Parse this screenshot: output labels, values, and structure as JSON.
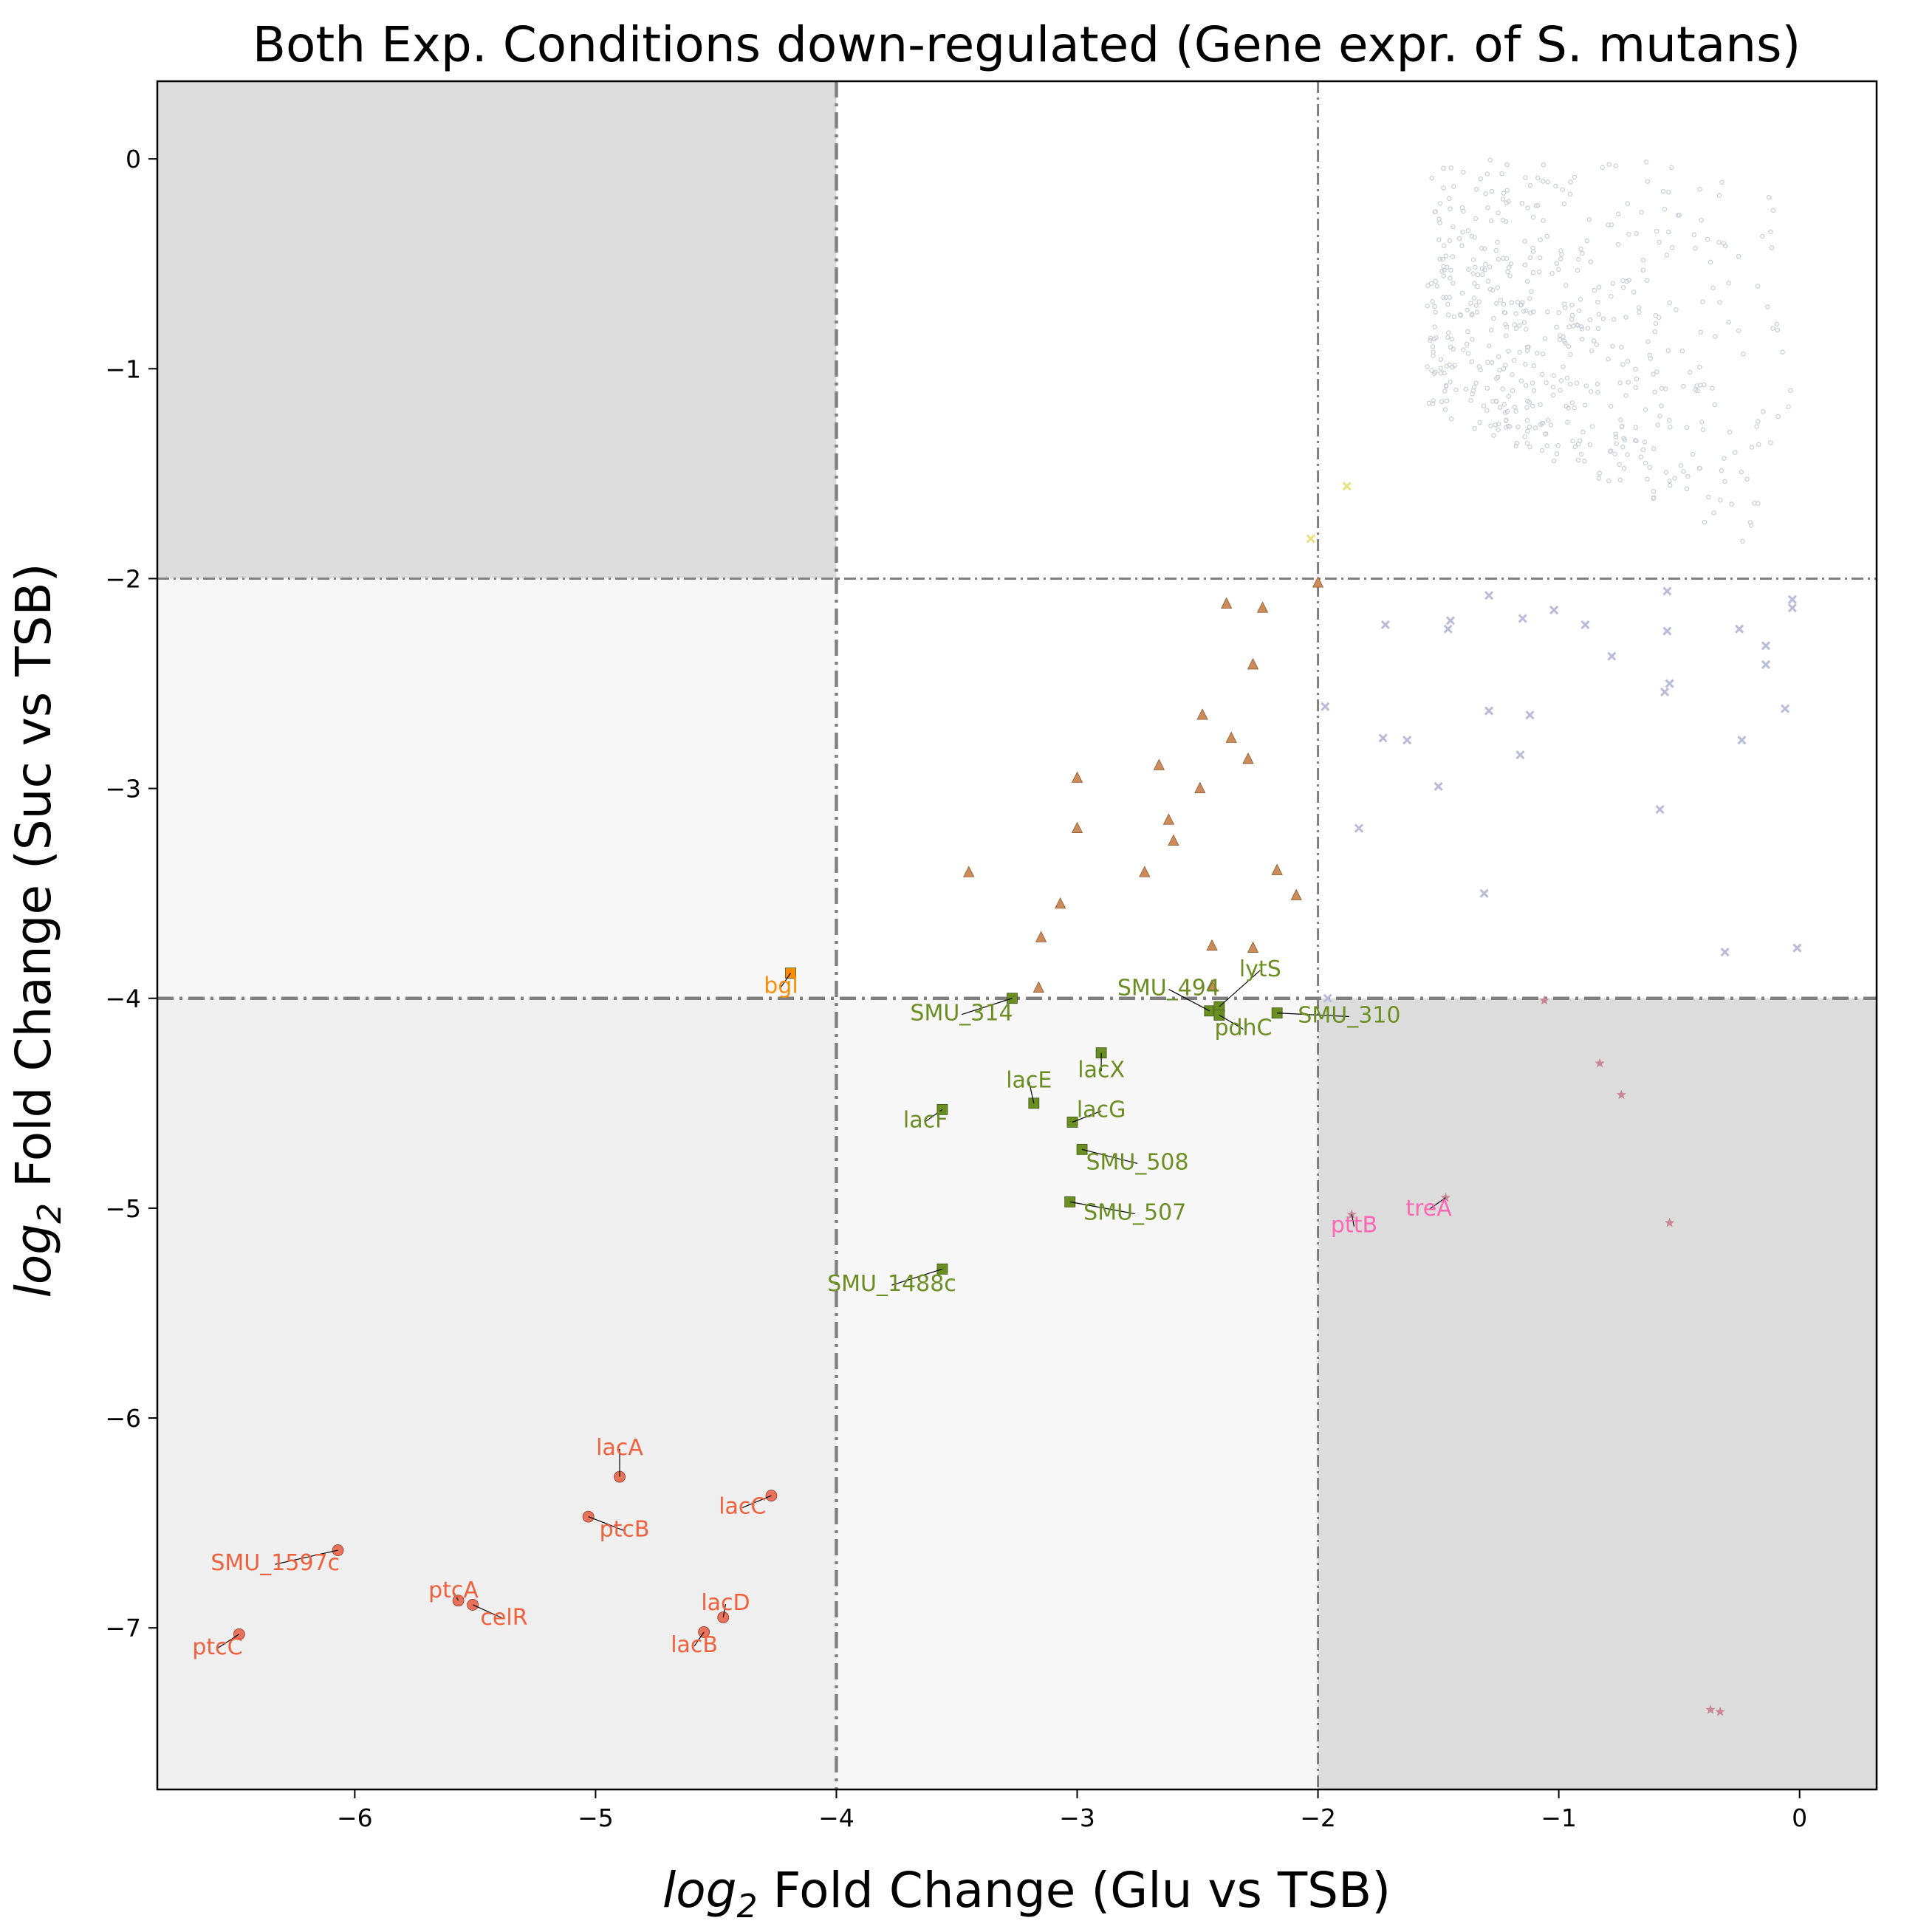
{
  "chart_data": {
    "type": "scatter",
    "title": "Both Exp. Conditions down-regulated (Gene expr. of S. mutans)",
    "xlabel": {
      "prefix": "log",
      "sub": "2",
      "rest": " Fold Change (Glu vs TSB)"
    },
    "ylabel": {
      "prefix": "log",
      "sub": "2",
      "rest": " Fold Change (Suc vs TSB)"
    },
    "xlim": [
      -6.82,
      0.32
    ],
    "ylim": [
      -7.77,
      0.37
    ],
    "xticks": [
      -6,
      -5,
      -4,
      -3,
      -2,
      -1,
      0
    ],
    "yticks": [
      0,
      -1,
      -2,
      -3,
      -4,
      -5,
      -6,
      -7
    ],
    "xtick_labels": [
      "−6",
      "−5",
      "−4",
      "−3",
      "−2",
      "−1",
      "0"
    ],
    "ytick_labels": [
      "0",
      "−1",
      "−2",
      "−3",
      "−4",
      "−5",
      "−6",
      "−7"
    ],
    "thresholds": {
      "x": [
        -4,
        -2
      ],
      "y": [
        -2,
        -4
      ]
    },
    "regions": [
      {
        "x": [
          -6.82,
          -4
        ],
        "y": [
          -2,
          0.37
        ],
        "color": "#dcdcdc"
      },
      {
        "x": [
          -2,
          0.32
        ],
        "y": [
          -7.77,
          -4
        ],
        "color": "#dcdcdc"
      },
      {
        "x": [
          -6.82,
          -4
        ],
        "y": [
          -4,
          -2
        ],
        "color": "#f7f7f7"
      },
      {
        "x": [
          -4,
          -2
        ],
        "y": [
          -7.77,
          -4
        ],
        "color": "#f7f7f7"
      },
      {
        "x": [
          -6.82,
          -4
        ],
        "y": [
          -7.77,
          -4
        ],
        "color": "#efefef"
      }
    ],
    "series": [
      {
        "marker": "circle",
        "color": "#e8735a",
        "label_color": "#f0603c",
        "points": [
          {
            "x": -4.9,
            "y": -6.28,
            "label": "lacA",
            "lx": -4.9,
            "ly": -6.14
          },
          {
            "x": -4.27,
            "y": -6.37,
            "label": "lacC",
            "lx": -4.39,
            "ly": -6.42
          },
          {
            "x": -5.03,
            "y": -6.47,
            "label": "ptcB",
            "lx": -4.88,
            "ly": -6.53
          },
          {
            "x": -6.07,
            "y": -6.63,
            "label": "SMU_1597c",
            "lx": -6.33,
            "ly": -6.69
          },
          {
            "x": -5.57,
            "y": -6.87,
            "label": "ptcA",
            "lx": -5.59,
            "ly": -6.82
          },
          {
            "x": -5.51,
            "y": -6.89,
            "label": "celR",
            "lx": -5.38,
            "ly": -6.95
          },
          {
            "x": -4.47,
            "y": -6.95,
            "label": "lacD",
            "lx": -4.46,
            "ly": -6.88
          },
          {
            "x": -4.55,
            "y": -7.02,
            "label": "lacB",
            "lx": -4.59,
            "ly": -7.08
          },
          {
            "x": -6.48,
            "y": -7.03,
            "label": "ptcC",
            "lx": -6.57,
            "ly": -7.09
          }
        ]
      },
      {
        "marker": "square",
        "color": "#6b8e23",
        "label_color": "#6b8e23",
        "points": [
          {
            "x": -3.27,
            "y": -4.0,
            "label": "SMU_314",
            "lx": -3.48,
            "ly": -4.07
          },
          {
            "x": -2.45,
            "y": -4.06,
            "label": "SMU_494",
            "lx": -2.62,
            "ly": -3.95
          },
          {
            "x": -2.41,
            "y": -4.04,
            "label": "lytS",
            "lx": -2.24,
            "ly": -3.86
          },
          {
            "x": -2.41,
            "y": -4.08,
            "label": "pdhC",
            "lx": -2.31,
            "ly": -4.14
          },
          {
            "x": -2.17,
            "y": -4.07,
            "label": "SMU_310",
            "lx": -1.87,
            "ly": -4.08
          },
          {
            "x": -2.9,
            "y": -4.26,
            "label": "lacX",
            "lx": -2.9,
            "ly": -4.34
          },
          {
            "x": -3.18,
            "y": -4.5,
            "label": "lacE",
            "lx": -3.2,
            "ly": -4.39
          },
          {
            "x": -3.56,
            "y": -4.53,
            "label": "lacF",
            "lx": -3.63,
            "ly": -4.58
          },
          {
            "x": -3.02,
            "y": -4.59,
            "label": "lacG",
            "lx": -2.9,
            "ly": -4.53
          },
          {
            "x": -2.98,
            "y": -4.72,
            "label": "SMU_508",
            "lx": -2.75,
            "ly": -4.78
          },
          {
            "x": -3.03,
            "y": -4.97,
            "label": "SMU_507",
            "lx": -2.76,
            "ly": -5.02
          },
          {
            "x": -3.56,
            "y": -5.29,
            "label": "SMU_1488c",
            "lx": -3.77,
            "ly": -5.36
          }
        ]
      },
      {
        "marker": "square",
        "color": "#ff8c00",
        "label_color": "#ff8c00",
        "points": [
          {
            "x": -4.19,
            "y": -3.88,
            "label": "bgl",
            "lx": -4.23,
            "ly": -3.94
          }
        ]
      },
      {
        "marker": "star",
        "color": "#c9859a",
        "label_color": "#ff66b3",
        "points": [
          {
            "x": -1.47,
            "y": -4.95,
            "label": "treA",
            "lx": -1.54,
            "ly": -5.0
          },
          {
            "x": -1.86,
            "y": -5.03,
            "label": "pttB",
            "lx": -1.85,
            "ly": -5.08
          },
          {
            "x": -1.06,
            "y": -4.01
          },
          {
            "x": -0.83,
            "y": -4.31
          },
          {
            "x": -0.74,
            "y": -4.46
          },
          {
            "x": -0.54,
            "y": -5.07
          },
          {
            "x": -0.37,
            "y": -7.39
          },
          {
            "x": -0.33,
            "y": -7.4
          }
        ]
      },
      {
        "marker": "triangle",
        "color": "#cd8b5a",
        "label_color": "#cd8b5a",
        "points": [
          {
            "x": -2.38,
            "y": -2.12
          },
          {
            "x": -2.23,
            "y": -2.14
          },
          {
            "x": -2.27,
            "y": -2.41
          },
          {
            "x": -2.48,
            "y": -2.65
          },
          {
            "x": -2.36,
            "y": -2.76
          },
          {
            "x": -2.29,
            "y": -2.86
          },
          {
            "x": -2.66,
            "y": -2.89
          },
          {
            "x": -3.0,
            "y": -2.95
          },
          {
            "x": -2.49,
            "y": -3.0
          },
          {
            "x": -2.62,
            "y": -3.15
          },
          {
            "x": -3.0,
            "y": -3.19
          },
          {
            "x": -2.6,
            "y": -3.25
          },
          {
            "x": -3.45,
            "y": -3.4
          },
          {
            "x": -2.72,
            "y": -3.4
          },
          {
            "x": -2.17,
            "y": -3.39
          },
          {
            "x": -2.09,
            "y": -3.51
          },
          {
            "x": -3.07,
            "y": -3.55
          },
          {
            "x": -3.15,
            "y": -3.71
          },
          {
            "x": -2.44,
            "y": -3.75
          },
          {
            "x": -2.27,
            "y": -3.76
          },
          {
            "x": -3.16,
            "y": -3.95
          },
          {
            "x": -2.44,
            "y": -3.94
          },
          {
            "x": -2.0,
            "y": -2.02
          }
        ]
      },
      {
        "marker": "x",
        "color": "#e8e080",
        "label_color": "#e8e080",
        "points": [
          {
            "x": -1.88,
            "y": -1.56
          },
          {
            "x": -2.03,
            "y": -1.81
          }
        ]
      },
      {
        "marker": "x",
        "color": "#b8bcd8",
        "label_color": "#b8bcd8",
        "points": [
          {
            "x": -1.72,
            "y": -2.22
          },
          {
            "x": -1.46,
            "y": -2.24
          },
          {
            "x": -1.45,
            "y": -2.2
          },
          {
            "x": -1.29,
            "y": -2.08
          },
          {
            "x": -1.15,
            "y": -2.19
          },
          {
            "x": -1.02,
            "y": -2.15
          },
          {
            "x": -0.89,
            "y": -2.22
          },
          {
            "x": -0.78,
            "y": -2.37
          },
          {
            "x": -0.55,
            "y": -2.06
          },
          {
            "x": -0.55,
            "y": -2.25
          },
          {
            "x": -0.25,
            "y": -2.24
          },
          {
            "x": -0.14,
            "y": -2.32
          },
          {
            "x": -0.14,
            "y": -2.41
          },
          {
            "x": -0.03,
            "y": -2.1
          },
          {
            "x": -0.03,
            "y": -2.14
          },
          {
            "x": -0.56,
            "y": -2.54
          },
          {
            "x": -0.54,
            "y": -2.5
          },
          {
            "x": -1.29,
            "y": -2.63
          },
          {
            "x": -1.12,
            "y": -2.65
          },
          {
            "x": -0.06,
            "y": -2.62
          },
          {
            "x": -1.73,
            "y": -2.76
          },
          {
            "x": -1.63,
            "y": -2.77
          },
          {
            "x": -0.24,
            "y": -2.77
          },
          {
            "x": -1.16,
            "y": -2.84
          },
          {
            "x": -1.5,
            "y": -2.99
          },
          {
            "x": -0.58,
            "y": -3.1
          },
          {
            "x": -1.83,
            "y": -3.19
          },
          {
            "x": -1.31,
            "y": -3.5
          },
          {
            "x": -0.31,
            "y": -3.78
          },
          {
            "x": -0.01,
            "y": -3.76
          },
          {
            "x": -1.97,
            "y": -2.61
          },
          {
            "x": -1.96,
            "y": -4.0
          }
        ]
      }
    ],
    "background_points": {
      "color": "#c9cbd6",
      "count": 560,
      "x_range": [
        -1.55,
        0.0
      ],
      "y_range": [
        -1.95,
        0.0
      ]
    }
  }
}
